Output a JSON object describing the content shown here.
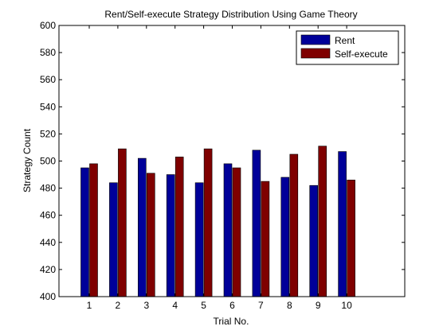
{
  "chart_data": {
    "type": "bar",
    "title": "Rent/Self-execute Strategy Distribution Using Game Theory",
    "xlabel": "Trial No.",
    "ylabel": "Strategy Count",
    "categories": [
      "1",
      "2",
      "3",
      "4",
      "5",
      "6",
      "7",
      "8",
      "9",
      "10"
    ],
    "ylim": [
      400,
      600
    ],
    "yticks": [
      400,
      420,
      440,
      460,
      480,
      500,
      520,
      540,
      560,
      580,
      600
    ],
    "grid": false,
    "legend_position": "top-right",
    "series": [
      {
        "name": "Rent",
        "color": "#000099",
        "values": [
          495,
          484,
          502,
          490,
          484,
          498,
          508,
          488,
          482,
          507
        ]
      },
      {
        "name": "Self-execute",
        "color": "#7f0000",
        "values": [
          498,
          509,
          491,
          503,
          509,
          495,
          485,
          505,
          511,
          486
        ]
      }
    ]
  }
}
